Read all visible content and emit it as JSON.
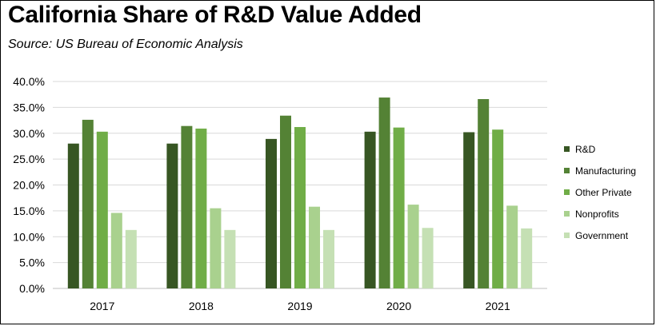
{
  "title": "California Share of R&D Value Added",
  "subtitle": "Source:  US Bureau of Economic Analysis",
  "chart_data": {
    "type": "bar",
    "categories": [
      "2017",
      "2018",
      "2019",
      "2020",
      "2021"
    ],
    "series": [
      {
        "name": "R&D",
        "color": "#375623",
        "values": [
          28.0,
          28.0,
          28.9,
          30.3,
          30.2
        ]
      },
      {
        "name": "Manufacturing",
        "color": "#548235",
        "values": [
          32.6,
          31.4,
          33.4,
          36.9,
          36.6
        ]
      },
      {
        "name": "Other Private",
        "color": "#70ad47",
        "values": [
          30.3,
          30.9,
          31.2,
          31.1,
          30.7
        ]
      },
      {
        "name": "Nonprofits",
        "color": "#a9d18e",
        "values": [
          14.6,
          15.5,
          15.8,
          16.2,
          16.0
        ]
      },
      {
        "name": "Government",
        "color": "#c5e0b4",
        "values": [
          11.3,
          11.3,
          11.3,
          11.7,
          11.6
        ]
      }
    ],
    "yticks": [
      "0.0%",
      "5.0%",
      "10.0%",
      "15.0%",
      "20.0%",
      "25.0%",
      "30.0%",
      "35.0%",
      "40.0%"
    ],
    "ylim": [
      0,
      40
    ],
    "grid": true,
    "legend": "right"
  }
}
